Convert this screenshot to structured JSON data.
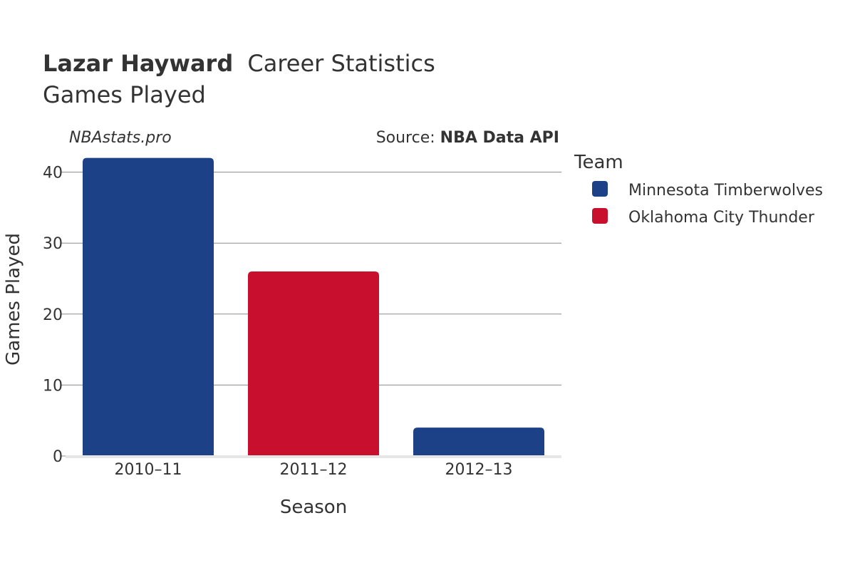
{
  "header": {
    "player_name": "Lazar Hayward",
    "title_suffix": "Career Statistics",
    "subtitle": "Games Played"
  },
  "watermark": "NBAstats.pro",
  "source": {
    "prefix": "Source: ",
    "name": "NBA Data API"
  },
  "legend": {
    "title": "Team",
    "items": [
      {
        "label": "Minnesota Timberwolves",
        "color": "#1c4187"
      },
      {
        "label": "Oklahoma City Thunder",
        "color": "#c8102e"
      }
    ]
  },
  "chart_data": {
    "type": "bar",
    "xlabel": "Season",
    "ylabel": "Games Played",
    "ylim": [
      0,
      44
    ],
    "yticks": [
      0,
      10,
      20,
      30,
      40
    ],
    "grid": true,
    "legend_position": "right",
    "categories": [
      "2010–11",
      "2011–12",
      "2012–13"
    ],
    "bars": [
      {
        "category": "2010–11",
        "team": "Minnesota Timberwolves",
        "value": 42,
        "color": "#1c4187"
      },
      {
        "category": "2011–12",
        "team": "Oklahoma City Thunder",
        "value": 26,
        "color": "#c8102e"
      },
      {
        "category": "2012–13",
        "team": "Minnesota Timberwolves",
        "value": 4,
        "color": "#1c4187"
      }
    ]
  }
}
